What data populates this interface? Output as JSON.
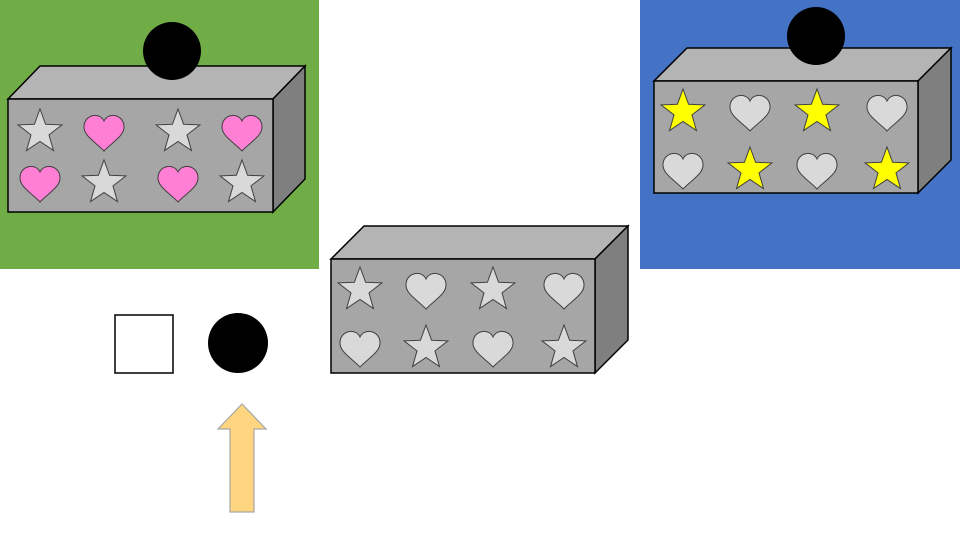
{
  "colors": {
    "green_panel": "#70AD47",
    "blue_panel": "#4472C4",
    "box_front": "#A6A6A6",
    "box_top": "#B4B4B4",
    "box_side": "#7F7F7F",
    "outline": "#000000",
    "heart_pink": "#FF7FD4",
    "star_yellow": "#FFFF00",
    "shape_gray": "#D9D9D9",
    "ball": "#000000",
    "arrow_fill": "#FFD580",
    "arrow_stroke": "#A6A6A6"
  },
  "boxes": [
    {
      "name": "box-green",
      "rows": [
        [
          {
            "shape": "star",
            "color": "#D9D9D9"
          },
          {
            "shape": "heart",
            "color": "#FF7FD4"
          },
          {
            "shape": "star",
            "color": "#D9D9D9"
          },
          {
            "shape": "heart",
            "color": "#FF7FD4"
          }
        ],
        [
          {
            "shape": "heart",
            "color": "#FF7FD4"
          },
          {
            "shape": "star",
            "color": "#D9D9D9"
          },
          {
            "shape": "heart",
            "color": "#FF7FD4"
          },
          {
            "shape": "star",
            "color": "#D9D9D9"
          }
        ]
      ]
    },
    {
      "name": "box-center",
      "rows": [
        [
          {
            "shape": "star",
            "color": "#D9D9D9"
          },
          {
            "shape": "heart",
            "color": "#D9D9D9"
          },
          {
            "shape": "star",
            "color": "#D9D9D9"
          },
          {
            "shape": "heart",
            "color": "#D9D9D9"
          }
        ],
        [
          {
            "shape": "heart",
            "color": "#D9D9D9"
          },
          {
            "shape": "star",
            "color": "#D9D9D9"
          },
          {
            "shape": "heart",
            "color": "#D9D9D9"
          },
          {
            "shape": "star",
            "color": "#D9D9D9"
          }
        ]
      ]
    },
    {
      "name": "box-blue",
      "rows": [
        [
          {
            "shape": "star",
            "color": "#FFFF00"
          },
          {
            "shape": "heart",
            "color": "#D9D9D9"
          },
          {
            "shape": "star",
            "color": "#FFFF00"
          },
          {
            "shape": "heart",
            "color": "#D9D9D9"
          }
        ],
        [
          {
            "shape": "heart",
            "color": "#D9D9D9"
          },
          {
            "shape": "star",
            "color": "#FFFF00"
          },
          {
            "shape": "heart",
            "color": "#D9D9D9"
          },
          {
            "shape": "star",
            "color": "#FFFF00"
          }
        ]
      ]
    }
  ]
}
